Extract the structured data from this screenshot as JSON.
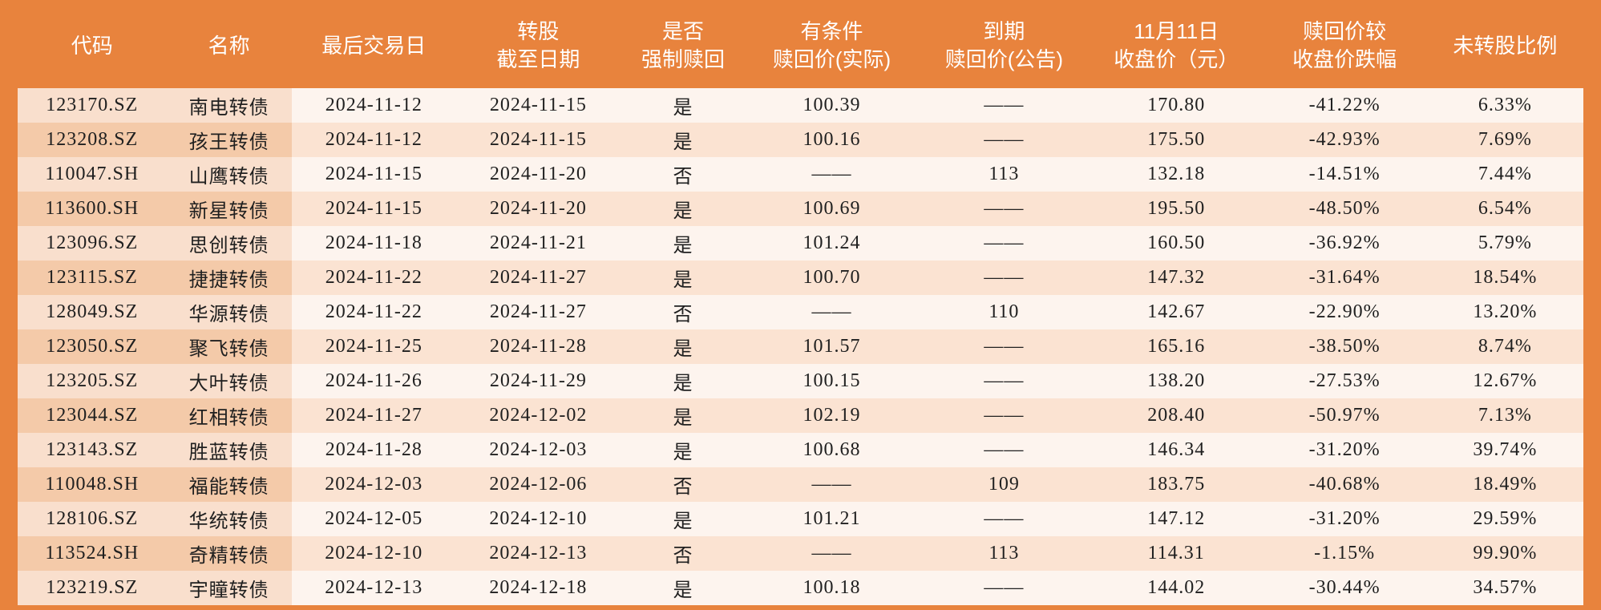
{
  "palette": {
    "page_bg": "#e8833d",
    "header_text": "#ffffff",
    "body_text": "#202020",
    "row_even_bg": "#fdf4ee",
    "row_odd_bg": "#fbe3d2",
    "row_even_first2_bg": "#f9dfcd",
    "row_odd_first2_bg": "#f4caa9"
  },
  "typography": {
    "header_font": "Microsoft YaHei / SimHei, sans-serif",
    "header_fontsize_pt": 20,
    "body_font": "SimSun, serif",
    "body_fontsize_pt": 18
  },
  "table": {
    "type": "table",
    "col_widths_pct": [
      9.5,
      8,
      10.5,
      10.5,
      8,
      11,
      11,
      11,
      10.5,
      10
    ],
    "columns": [
      "代码",
      "名称",
      "最后交易日",
      "转股\n截至日期",
      "是否\n强制赎回",
      "有条件\n赎回价(实际)",
      "到期\n赎回价(公告)",
      "11月11日\n收盘价（元）",
      "赎回价较\n收盘价跌幅",
      "未转股比例"
    ],
    "rows": [
      [
        "123170.SZ",
        "南电转债",
        "2024-11-12",
        "2024-11-15",
        "是",
        "100.39",
        "——",
        "170.80",
        "-41.22%",
        "6.33%"
      ],
      [
        "123208.SZ",
        "孩王转债",
        "2024-11-12",
        "2024-11-15",
        "是",
        "100.16",
        "——",
        "175.50",
        "-42.93%",
        "7.69%"
      ],
      [
        "110047.SH",
        "山鹰转债",
        "2024-11-15",
        "2024-11-20",
        "否",
        "——",
        "113",
        "132.18",
        "-14.51%",
        "7.44%"
      ],
      [
        "113600.SH",
        "新星转债",
        "2024-11-15",
        "2024-11-20",
        "是",
        "100.69",
        "——",
        "195.50",
        "-48.50%",
        "6.54%"
      ],
      [
        "123096.SZ",
        "思创转债",
        "2024-11-18",
        "2024-11-21",
        "是",
        "101.24",
        "——",
        "160.50",
        "-36.92%",
        "5.79%"
      ],
      [
        "123115.SZ",
        "捷捷转债",
        "2024-11-22",
        "2024-11-27",
        "是",
        "100.70",
        "——",
        "147.32",
        "-31.64%",
        "18.54%"
      ],
      [
        "128049.SZ",
        "华源转债",
        "2024-11-22",
        "2024-11-27",
        "否",
        "——",
        "110",
        "142.67",
        "-22.90%",
        "13.20%"
      ],
      [
        "123050.SZ",
        "聚飞转债",
        "2024-11-25",
        "2024-11-28",
        "是",
        "101.57",
        "——",
        "165.16",
        "-38.50%",
        "8.74%"
      ],
      [
        "123205.SZ",
        "大叶转债",
        "2024-11-26",
        "2024-11-29",
        "是",
        "100.15",
        "——",
        "138.20",
        "-27.53%",
        "12.67%"
      ],
      [
        "123044.SZ",
        "红相转债",
        "2024-11-27",
        "2024-12-02",
        "是",
        "102.19",
        "——",
        "208.40",
        "-50.97%",
        "7.13%"
      ],
      [
        "123143.SZ",
        "胜蓝转债",
        "2024-11-28",
        "2024-12-03",
        "是",
        "100.68",
        "——",
        "146.34",
        "-31.20%",
        "39.74%"
      ],
      [
        "110048.SH",
        "福能转债",
        "2024-12-03",
        "2024-12-06",
        "否",
        "——",
        "109",
        "183.75",
        "-40.68%",
        "18.49%"
      ],
      [
        "128106.SZ",
        "华统转债",
        "2024-12-05",
        "2024-12-10",
        "是",
        "101.21",
        "——",
        "147.12",
        "-31.20%",
        "29.59%"
      ],
      [
        "113524.SH",
        "奇精转债",
        "2024-12-10",
        "2024-12-13",
        "否",
        "——",
        "113",
        "114.31",
        "-1.15%",
        "99.90%"
      ],
      [
        "123219.SZ",
        "宇瞳转债",
        "2024-12-13",
        "2024-12-18",
        "是",
        "100.18",
        "——",
        "144.02",
        "-30.44%",
        "34.57%"
      ]
    ]
  }
}
